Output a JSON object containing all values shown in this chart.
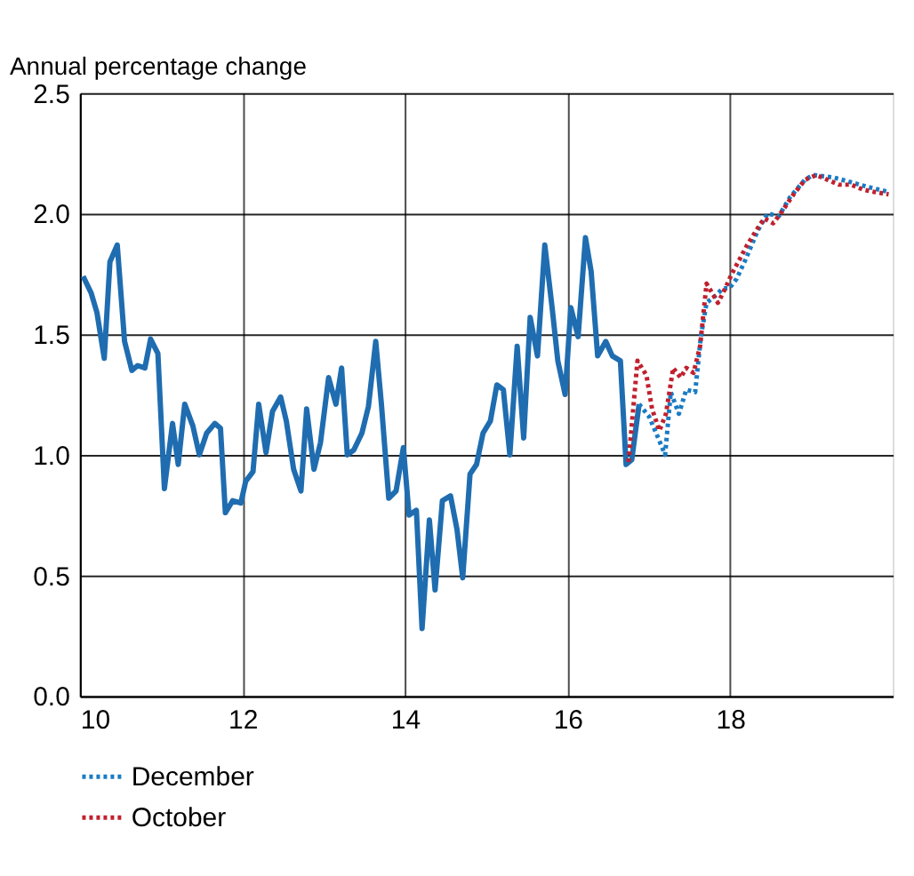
{
  "chart_data": {
    "type": "line",
    "ylabel": "Annual percentage change",
    "xlim": [
      10,
      20
    ],
    "xticks": [
      10,
      12,
      14,
      16,
      18
    ],
    "ylim": [
      0,
      2.5
    ],
    "yticks": [
      {
        "value": 0,
        "label": "0.0"
      },
      {
        "value": 0.5,
        "label": "0.5"
      },
      {
        "value": 1,
        "label": "1.0"
      },
      {
        "value": 1.5,
        "label": "1.5"
      },
      {
        "value": 2,
        "label": "2.0"
      },
      {
        "value": 2.5,
        "label": "2.5"
      }
    ],
    "grid": true,
    "legend": "bottom",
    "series": [
      {
        "color": "#1f6db0",
        "line_style": "solid",
        "x": [
          10.04,
          10.14,
          10.21,
          10.3,
          10.37,
          10.46,
          10.55,
          10.64,
          10.71,
          10.8,
          10.87,
          10.96,
          11.04,
          11.14,
          11.21,
          11.29,
          11.39,
          11.47,
          11.56,
          11.66,
          11.73,
          11.79,
          11.88,
          11.98,
          12.04,
          12.13,
          12.2,
          12.29,
          12.37,
          12.47,
          12.54,
          12.63,
          12.72,
          12.79,
          12.88,
          12.96,
          13.06,
          13.15,
          13.22,
          13.29,
          13.37,
          13.47,
          13.55,
          13.64,
          13.71,
          13.8,
          13.89,
          13.98,
          14.05,
          14.14,
          14.21,
          14.3,
          14.37,
          14.46,
          14.56,
          14.64,
          14.71,
          14.8,
          14.88,
          14.96,
          15.05,
          15.13,
          15.21,
          15.29,
          15.38,
          15.46,
          15.54,
          15.63,
          15.72,
          15.81,
          15.88,
          15.97,
          16.04,
          16.13,
          16.22,
          16.29,
          16.37,
          16.47,
          16.55,
          16.65,
          16.72,
          16.79,
          16.88
        ],
        "values": [
          1.74,
          1.67,
          1.59,
          1.4,
          1.8,
          1.87,
          1.47,
          1.35,
          1.37,
          1.36,
          1.48,
          1.42,
          0.86,
          1.13,
          0.96,
          1.21,
          1.12,
          1.0,
          1.09,
          1.13,
          1.11,
          0.76,
          0.81,
          0.8,
          0.89,
          0.93,
          1.21,
          1.01,
          1.18,
          1.24,
          1.14,
          0.94,
          0.85,
          1.19,
          0.94,
          1.05,
          1.32,
          1.21,
          1.36,
          1.0,
          1.02,
          1.09,
          1.2,
          1.47,
          1.21,
          0.82,
          0.85,
          1.03,
          0.75,
          0.77,
          0.28,
          0.73,
          0.44,
          0.81,
          0.83,
          0.69,
          0.49,
          0.92,
          0.96,
          1.09,
          1.14,
          1.29,
          1.27,
          1.0,
          1.45,
          1.07,
          1.57,
          1.41,
          1.87,
          1.61,
          1.39,
          1.25,
          1.61,
          1.49,
          1.9,
          1.76,
          1.41,
          1.47,
          1.41,
          1.39,
          0.96,
          0.98,
          1.21
        ]
      },
      {
        "name": "December",
        "color": "#1a7bc4",
        "line_style": "dotted",
        "x": [
          16.88,
          17.0,
          17.09,
          17.2,
          17.27,
          17.37,
          17.46,
          17.57,
          17.64,
          17.71,
          17.82,
          17.91,
          17.99,
          18.08,
          18.19,
          18.34,
          18.46,
          18.6,
          18.74,
          18.92,
          19.02,
          19.27,
          19.49,
          19.7,
          19.95
        ],
        "values": [
          1.21,
          1.16,
          1.09,
          1.0,
          1.26,
          1.17,
          1.27,
          1.26,
          1.49,
          1.63,
          1.66,
          1.69,
          1.69,
          1.73,
          1.81,
          1.93,
          2.0,
          1.99,
          2.07,
          2.14,
          2.16,
          2.15,
          2.13,
          2.11,
          2.09
        ]
      },
      {
        "name": "October",
        "color": "#c0202e",
        "line_style": "dotted",
        "x": [
          16.75,
          16.86,
          16.97,
          17.04,
          17.13,
          17.21,
          17.3,
          17.39,
          17.46,
          17.55,
          17.63,
          17.71,
          17.78,
          17.85,
          17.94,
          18.02,
          18.1,
          18.21,
          18.34,
          18.42,
          18.53,
          18.64,
          18.78,
          18.92,
          19.06,
          19.2,
          19.34,
          19.49,
          19.63,
          19.77,
          19.95
        ],
        "values": [
          0.97,
          1.39,
          1.33,
          1.19,
          1.1,
          1.17,
          1.36,
          1.32,
          1.36,
          1.34,
          1.45,
          1.71,
          1.67,
          1.63,
          1.69,
          1.75,
          1.8,
          1.87,
          1.94,
          1.98,
          1.96,
          2.01,
          2.08,
          2.14,
          2.16,
          2.14,
          2.12,
          2.12,
          2.1,
          2.09,
          2.08
        ]
      }
    ]
  }
}
